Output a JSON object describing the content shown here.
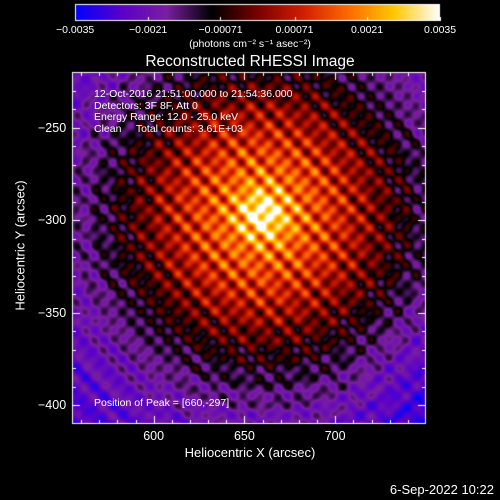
{
  "chart_data": {
    "type": "heatmap",
    "title": "Reconstructed RHESSI Image",
    "xlabel": "Heliocentric X (arcsec)",
    "ylabel": "Heliocentric Y (arcsec)",
    "xlim": [
      555,
      750
    ],
    "ylim": [
      -410,
      -220
    ],
    "xticks": [
      600,
      650,
      700
    ],
    "yticks": [
      -250,
      -300,
      -350,
      -400
    ],
    "xtick_labels": [
      "600",
      "650",
      "700"
    ],
    "ytick_labels": [
      "−250",
      "−300",
      "−350",
      "−400"
    ],
    "colorbar": {
      "min": -0.0035,
      "max": 0.0035,
      "ticks": [
        -0.0035,
        -0.0021,
        -0.00071,
        0.00071,
        0.0021,
        0.0035
      ],
      "tick_labels": [
        "−0.0035",
        "−0.0021",
        "−0.00071",
        "0.00071",
        "0.0021",
        "0.0035"
      ],
      "units_label": "(photons cm⁻² s⁻¹ asec⁻²)",
      "colors": [
        "#0000ff",
        "#5a00c8",
        "#7a1fa0",
        "#000000",
        "#7a0000",
        "#d21e00",
        "#ff6a00",
        "#ffc800",
        "#ffffff"
      ]
    },
    "annotations": [
      "12-Oct-2016 21:51:00.000 to 21:54:36.000",
      "Detectors: 3F 8F, Att 0",
      "Energy Range: 12.0 - 25.0 keV",
      "Clean     Total counts: 3.61E+03"
    ],
    "peak_label": "Position of Peak = [660,-297]",
    "peak": [
      660,
      -297
    ],
    "grid": false
  },
  "footer": {
    "timestamp": "6-Sep-2022 10:22"
  }
}
